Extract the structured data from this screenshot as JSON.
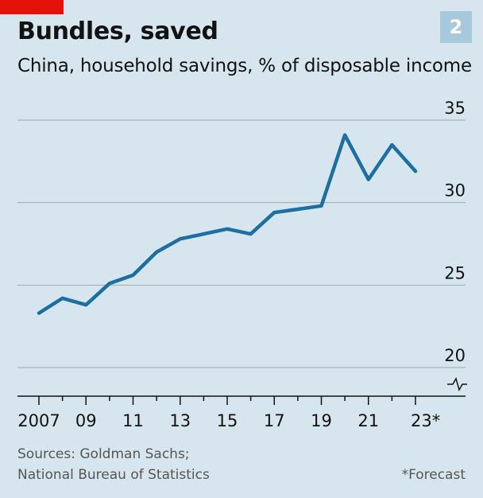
{
  "header": {
    "title": "Bundles, saved",
    "subtitle": "China, household savings, % of disposable income",
    "badge": "2"
  },
  "footer": {
    "sources_line1": "Sources: Goldman Sachs;",
    "sources_line2": "National Bureau of Statistics",
    "note": "*Forecast"
  },
  "colors": {
    "background": "#d7e6ee",
    "line": "#1c6fa0",
    "accent_red": "#e3120b",
    "badge": "#a6c9dc"
  },
  "chart_data": {
    "type": "line",
    "title": "Bundles, saved",
    "subtitle": "China, household savings, % of disposable income",
    "xlabel": "",
    "ylabel": "",
    "ylim": [
      20,
      35
    ],
    "y_ticks": [
      20,
      25,
      30,
      35
    ],
    "x_tick_labels": [
      {
        "year": 2007,
        "label": "2007"
      },
      {
        "year": 2009,
        "label": "09"
      },
      {
        "year": 2011,
        "label": "11"
      },
      {
        "year": 2013,
        "label": "13"
      },
      {
        "year": 2015,
        "label": "15"
      },
      {
        "year": 2017,
        "label": "17"
      },
      {
        "year": 2019,
        "label": "19"
      },
      {
        "year": 2021,
        "label": "21"
      },
      {
        "year": 2023,
        "label": "23*"
      }
    ],
    "x_minor_ticks": [
      2008,
      2010,
      2012,
      2014,
      2016,
      2018,
      2020,
      2022
    ],
    "axis_break": true,
    "grid": true,
    "series": [
      {
        "x": [
          2007,
          2008,
          2009,
          2010,
          2011,
          2012,
          2013,
          2014,
          2015,
          2016,
          2017,
          2018,
          2019,
          2020,
          2021,
          2022,
          2023
        ],
        "values": [
          23.3,
          24.2,
          23.8,
          25.1,
          25.6,
          27.0,
          27.8,
          28.1,
          28.4,
          28.1,
          29.4,
          29.6,
          29.8,
          34.1,
          31.4,
          33.5,
          31.9
        ]
      }
    ]
  }
}
